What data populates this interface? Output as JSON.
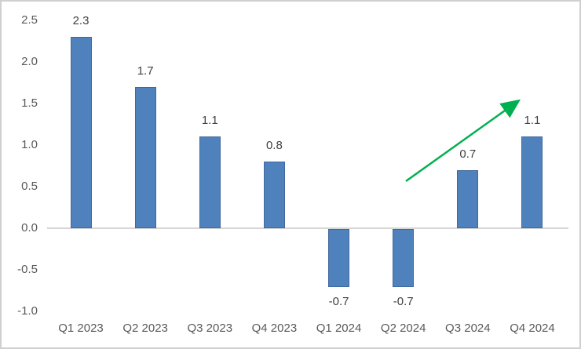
{
  "chart_data": {
    "type": "bar",
    "title": "",
    "xlabel": "",
    "ylabel": "",
    "categories": [
      "Q1 2023",
      "Q2 2023",
      "Q3 2023",
      "Q4 2023",
      "Q1 2024",
      "Q2 2024",
      "Q3 2024",
      "Q4 2024"
    ],
    "values": [
      2.3,
      1.7,
      1.1,
      0.8,
      -0.7,
      -0.7,
      0.7,
      1.1
    ],
    "data_labels": [
      "2.3",
      "1.7",
      "1.1",
      "0.8",
      "-0.7",
      "-0.7",
      "0.7",
      "1.1"
    ],
    "ylim": [
      -1.0,
      2.5
    ],
    "ytick_labels": [
      "2.5",
      "2.0",
      "1.5",
      "1.0",
      "0.5",
      "0.0",
      "-0.5",
      "-1.0"
    ],
    "ytick_values": [
      2.5,
      2.0,
      1.5,
      1.0,
      0.5,
      0.0,
      -0.5,
      -1.0
    ],
    "grid": false,
    "legend": false,
    "colors": {
      "bar_fill": "#4f81bd",
      "bar_edge": "#41689d",
      "axis_line": "#d6d6d6",
      "tick_text": "#595959",
      "data_label_text": "#404040",
      "trend_arrow": "#00b050",
      "frame_border": "#d0d0d0",
      "background": "#ffffff"
    },
    "annotation": {
      "name": "upward-trend-arrow",
      "description": "green diagonal arrow rising from above Q2 2024 toward Q4 2024",
      "from_value": 0.57,
      "to_value": 1.56
    }
  }
}
